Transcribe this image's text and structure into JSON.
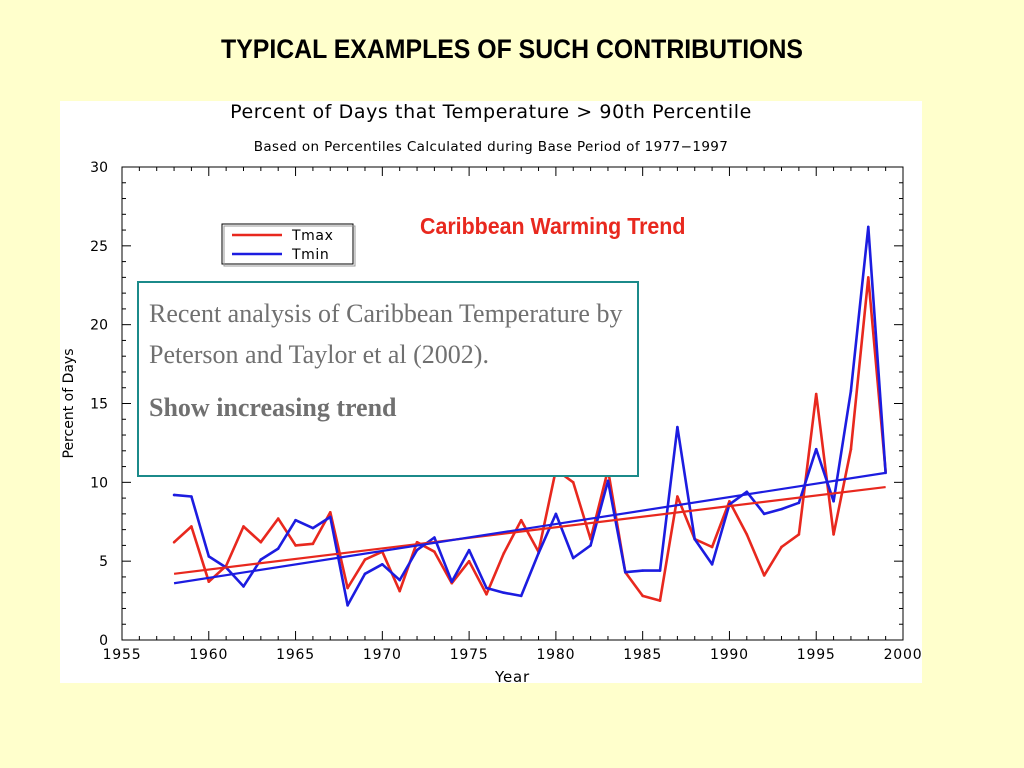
{
  "slide": {
    "title": "TYPICAL EXAMPLES OF SUCH CONTRIBUTIONS",
    "callout_text": "Recent analysis of Caribbean Temperature by Peterson and Taylor et al (2002).",
    "callout_emphasis": "Show increasing trend",
    "annotation": "Caribbean Warming Trend",
    "background": "#ffffcc"
  },
  "chart_data": {
    "type": "line",
    "title": "Percent of Days that Temperature > 90th Percentile",
    "subtitle": "Based on Percentiles Calculated during Base Period of 1977−1997",
    "xlabel": "Year",
    "ylabel": "Percent of Days",
    "xlim": [
      1955,
      2000
    ],
    "ylim": [
      0,
      30
    ],
    "x_ticks": [
      1955,
      1960,
      1965,
      1970,
      1975,
      1980,
      1985,
      1990,
      1995,
      2000
    ],
    "y_ticks": [
      0,
      5,
      10,
      15,
      20,
      25,
      30
    ],
    "legend_position": "top-left",
    "grid": false,
    "series": [
      {
        "name": "Tmax",
        "color": "#e8281e",
        "x": [
          1958,
          1959,
          1960,
          1961,
          1962,
          1963,
          1964,
          1965,
          1966,
          1967,
          1968,
          1969,
          1970,
          1971,
          1972,
          1973,
          1974,
          1975,
          1976,
          1977,
          1978,
          1979,
          1980,
          1981,
          1982,
          1983,
          1984,
          1985,
          1986,
          1987,
          1988,
          1989,
          1990,
          1991,
          1992,
          1993,
          1994,
          1995,
          1996,
          1997,
          1998,
          1999
        ],
        "y": [
          6.2,
          7.2,
          3.7,
          4.7,
          7.2,
          6.2,
          7.7,
          6.0,
          6.1,
          8.1,
          3.3,
          5.1,
          5.6,
          3.1,
          6.2,
          5.6,
          3.6,
          5.0,
          2.9,
          5.5,
          7.6,
          5.6,
          10.8,
          10.0,
          6.4,
          10.8,
          4.3,
          2.8,
          2.5,
          9.1,
          6.4,
          5.9,
          8.8,
          6.7,
          4.1,
          5.9,
          6.7,
          15.6,
          6.7,
          12.1,
          23.0,
          10.7
        ]
      },
      {
        "name": "Tmin",
        "color": "#1c1ce0",
        "x": [
          1958,
          1959,
          1960,
          1961,
          1962,
          1963,
          1964,
          1965,
          1966,
          1967,
          1968,
          1969,
          1970,
          1971,
          1972,
          1973,
          1974,
          1975,
          1976,
          1977,
          1978,
          1979,
          1980,
          1981,
          1982,
          1983,
          1984,
          1985,
          1986,
          1987,
          1988,
          1989,
          1990,
          1991,
          1992,
          1993,
          1994,
          1995,
          1996,
          1997,
          1998,
          1999
        ],
        "y": [
          9.2,
          9.1,
          5.3,
          4.6,
          3.4,
          5.1,
          5.8,
          7.6,
          7.1,
          7.8,
          2.2,
          4.2,
          4.8,
          3.8,
          5.7,
          6.5,
          3.7,
          5.7,
          3.3,
          3.0,
          2.8,
          5.5,
          8.0,
          5.2,
          6.0,
          10.1,
          4.3,
          4.4,
          4.4,
          13.5,
          6.4,
          4.8,
          8.6,
          9.4,
          8.0,
          8.3,
          8.7,
          12.1,
          8.8,
          15.8,
          26.2,
          10.6
        ]
      }
    ],
    "trend_lines": [
      {
        "series": "Tmax",
        "x": [
          1958,
          1999
        ],
        "y": [
          4.2,
          9.7
        ]
      },
      {
        "series": "Tmin",
        "x": [
          1958,
          1999
        ],
        "y": [
          3.6,
          10.6
        ]
      }
    ]
  }
}
